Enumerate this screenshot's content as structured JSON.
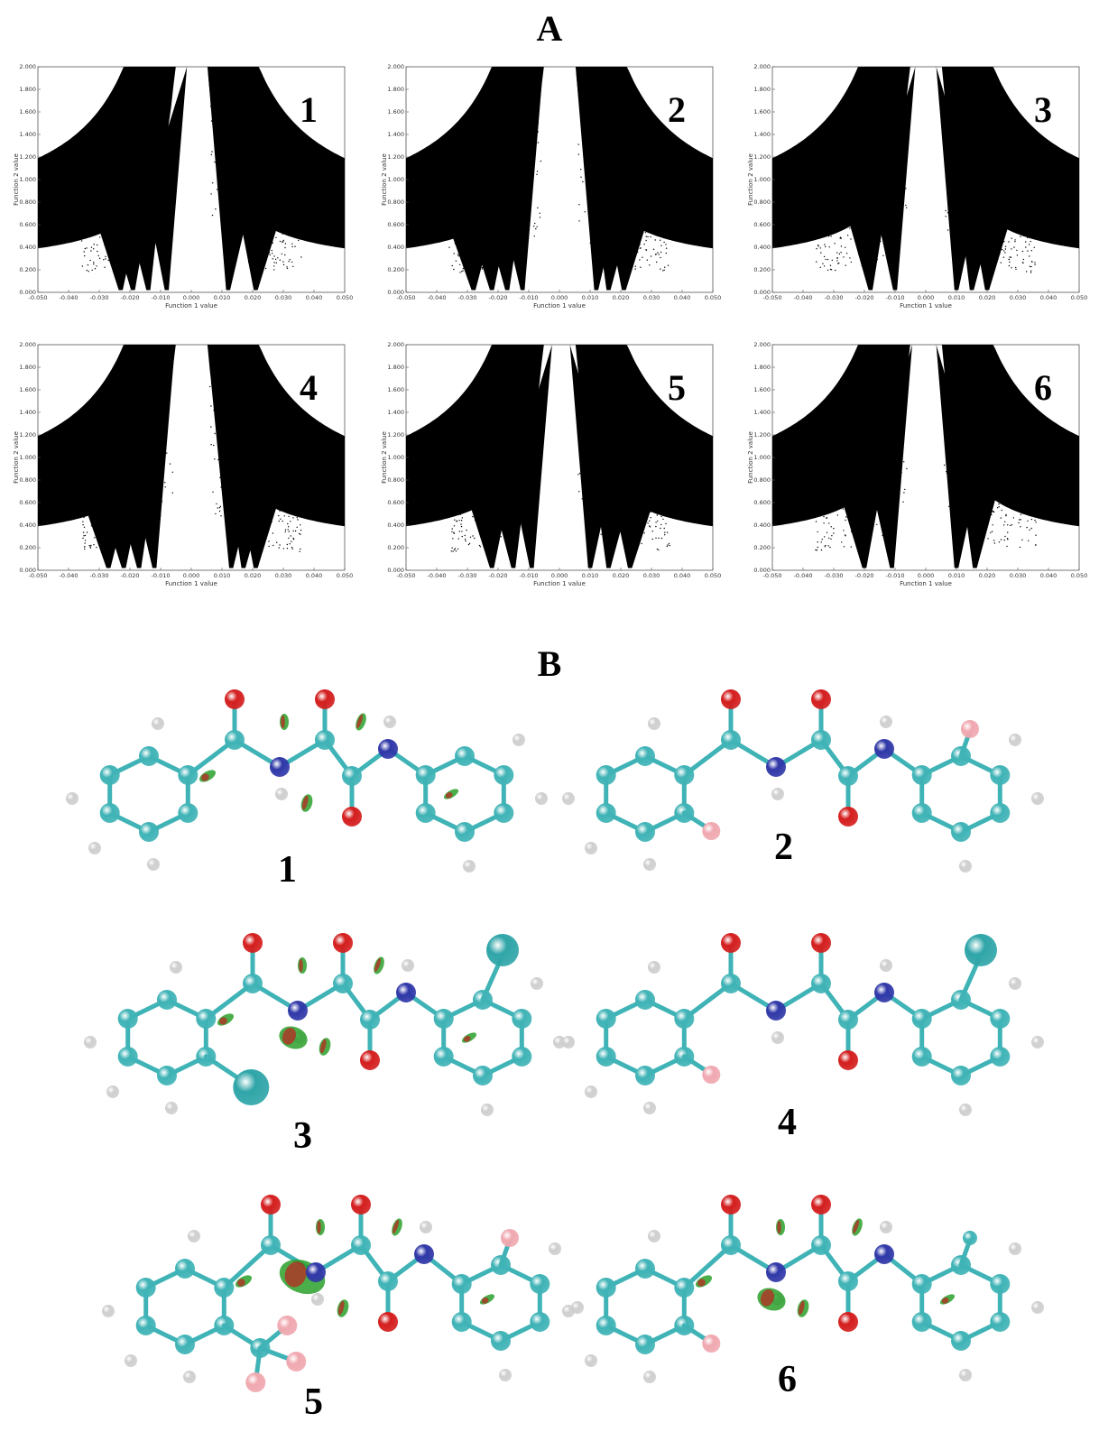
{
  "panel_a_label": "A",
  "panel_b_label": "B",
  "chart_data": [
    {
      "type": "scatter",
      "panel": "1",
      "xlabel": "Function 1 value",
      "ylabel": "Function 2 value",
      "xlim": [
        -0.05,
        0.05
      ],
      "ylim": [
        0,
        2
      ],
      "xticks": [
        "-0.050",
        "-0.040",
        "-0.030",
        "-0.020",
        "-0.010",
        "0.000",
        "0.010",
        "0.020",
        "0.030",
        "0.040",
        "0.050"
      ],
      "yticks": [
        "0.000",
        "0.200",
        "0.400",
        "0.600",
        "0.800",
        "1.000",
        "1.200",
        "1.400",
        "1.600",
        "1.800",
        "2.000"
      ],
      "spikes_left": [
        -0.023,
        -0.019,
        -0.014,
        -0.008
      ],
      "spikes_right": [
        0.012,
        0.021
      ]
    },
    {
      "type": "scatter",
      "panel": "2",
      "xlabel": "Function 1 value",
      "ylabel": "Function 2 value",
      "xlim": [
        -0.05,
        0.05
      ],
      "ylim": [
        0,
        2
      ],
      "xticks": [
        "-0.050",
        "-0.040",
        "-0.030",
        "-0.020",
        "-0.010",
        "0.000",
        "0.010",
        "0.020",
        "0.030",
        "0.040",
        "0.050"
      ],
      "yticks": [
        "0.000",
        "0.200",
        "0.400",
        "0.600",
        "0.800",
        "1.000",
        "1.200",
        "1.400",
        "1.600",
        "1.800",
        "2.000"
      ],
      "spikes_left": [
        -0.028,
        -0.022,
        -0.017,
        -0.012
      ],
      "spikes_right": [
        0.012,
        0.016,
        0.021
      ]
    },
    {
      "type": "scatter",
      "panel": "3",
      "xlabel": "Function 1 value",
      "ylabel": "Function 2 value",
      "xlim": [
        -0.05,
        0.05
      ],
      "ylim": [
        0,
        2
      ],
      "xticks": [
        "-0.050",
        "-0.040",
        "-0.030",
        "-0.020",
        "-0.010",
        "0.000",
        "0.010",
        "0.020",
        "0.030",
        "0.040",
        "0.050"
      ],
      "yticks": [
        "0.000",
        "0.200",
        "0.400",
        "0.600",
        "0.800",
        "1.000",
        "1.200",
        "1.400",
        "1.600",
        "1.800",
        "2.000"
      ],
      "spikes_left": [
        -0.018,
        -0.01
      ],
      "spikes_right": [
        0.01,
        0.015,
        0.02
      ]
    },
    {
      "type": "scatter",
      "panel": "4",
      "xlabel": "Function 1 value",
      "ylabel": "Function 2 value",
      "xlim": [
        -0.05,
        0.05
      ],
      "ylim": [
        0,
        2
      ],
      "xticks": [
        "-0.050",
        "-0.040",
        "-0.030",
        "-0.020",
        "-0.010",
        "0.000",
        "0.010",
        "0.020",
        "0.030",
        "0.040",
        "0.050"
      ],
      "yticks": [
        "0.000",
        "0.200",
        "0.400",
        "0.600",
        "0.800",
        "1.000",
        "1.200",
        "1.400",
        "1.600",
        "1.800",
        "2.000"
      ],
      "spikes_left": [
        -0.027,
        -0.022,
        -0.017,
        -0.012
      ],
      "spikes_right": [
        0.013,
        0.017,
        0.021
      ]
    },
    {
      "type": "scatter",
      "panel": "5",
      "xlabel": "Function 1 value",
      "ylabel": "Function 2 value",
      "xlim": [
        -0.05,
        0.05
      ],
      "ylim": [
        0,
        2
      ],
      "xticks": [
        "-0.050",
        "-0.040",
        "-0.030",
        "-0.020",
        "-0.010",
        "0.000",
        "0.010",
        "0.020",
        "0.030",
        "0.040",
        "0.050"
      ],
      "yticks": [
        "0.000",
        "0.200",
        "0.400",
        "0.600",
        "0.800",
        "1.000",
        "1.200",
        "1.400",
        "1.600",
        "1.800",
        "2.000"
      ],
      "spikes_left": [
        -0.022,
        -0.015,
        -0.009
      ],
      "spikes_right": [
        0.01,
        0.016,
        0.023
      ]
    },
    {
      "type": "scatter",
      "panel": "6",
      "xlabel": "Function 1 value",
      "ylabel": "Function 2 value",
      "xlim": [
        -0.05,
        0.05
      ],
      "ylim": [
        0,
        2
      ],
      "xticks": [
        "-0.050",
        "-0.040",
        "-0.030",
        "-0.020",
        "-0.010",
        "0.000",
        "0.010",
        "0.020",
        "0.030",
        "0.040",
        "0.050"
      ],
      "yticks": [
        "0.000",
        "0.200",
        "0.400",
        "0.600",
        "0.800",
        "1.000",
        "1.200",
        "1.400",
        "1.600",
        "1.800",
        "2.000"
      ],
      "spikes_left": [
        -0.02,
        -0.011
      ],
      "spikes_right": [
        0.01,
        0.016
      ]
    }
  ],
  "molecules": [
    {
      "label": "1"
    },
    {
      "label": "2"
    },
    {
      "label": "3"
    },
    {
      "label": "4"
    },
    {
      "label": "5"
    },
    {
      "label": "6"
    }
  ],
  "colors": {
    "carbon": "#3fb3b6",
    "nitrogen": "#3038a8",
    "oxygen": "#d41e1e",
    "hydrogen": "#e8e8e8",
    "fluorine": "#f0a8b0",
    "chlorine": "#2fa5a8",
    "bond": "#3fb3b6",
    "nci_green": "#2aa02a",
    "nci_red": "#c02020"
  }
}
